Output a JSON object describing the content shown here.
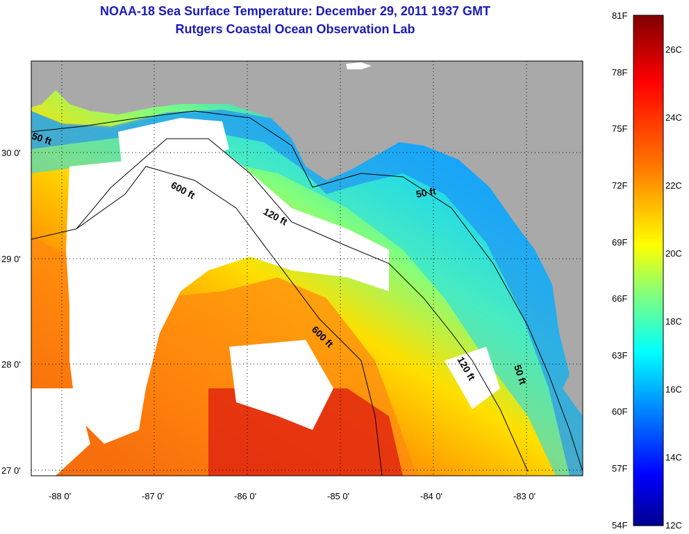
{
  "header": {
    "title": "NOAA-18 Sea Surface Temperature:  December 29, 2011 1937 GMT",
    "subtitle": "Rutgers Coastal Ocean Observation Lab"
  },
  "map": {
    "x_ticks": [
      "-88 0'",
      "-87 0'",
      "-86 0'",
      "-85 0'",
      "-84 0'",
      "-83 0'"
    ],
    "y_ticks": [
      "30 0'",
      "29 0'",
      "28 0'",
      "27 0'"
    ],
    "contours": [
      "50 ft",
      "120 ft",
      "600 ft",
      "50 ft",
      "600 ft",
      "120 ft",
      "50 ft"
    ],
    "colors": {
      "land": "#a9a9a9",
      "cloud": "#ffffff",
      "contour": "#000000"
    }
  },
  "colorbar": {
    "fahrenheit": [
      "81F",
      "78F",
      "75F",
      "72F",
      "69F",
      "66F",
      "63F",
      "60F",
      "57F",
      "54F"
    ],
    "celsius": [
      "26C",
      "24C",
      "22C",
      "20C",
      "18C",
      "16C",
      "14C",
      "12C"
    ],
    "colors": [
      "#7f0000",
      "#ff0000",
      "#ff7f00",
      "#ffff00",
      "#7fff7f",
      "#00ffff",
      "#007fff",
      "#0000ff",
      "#00008f"
    ]
  }
}
